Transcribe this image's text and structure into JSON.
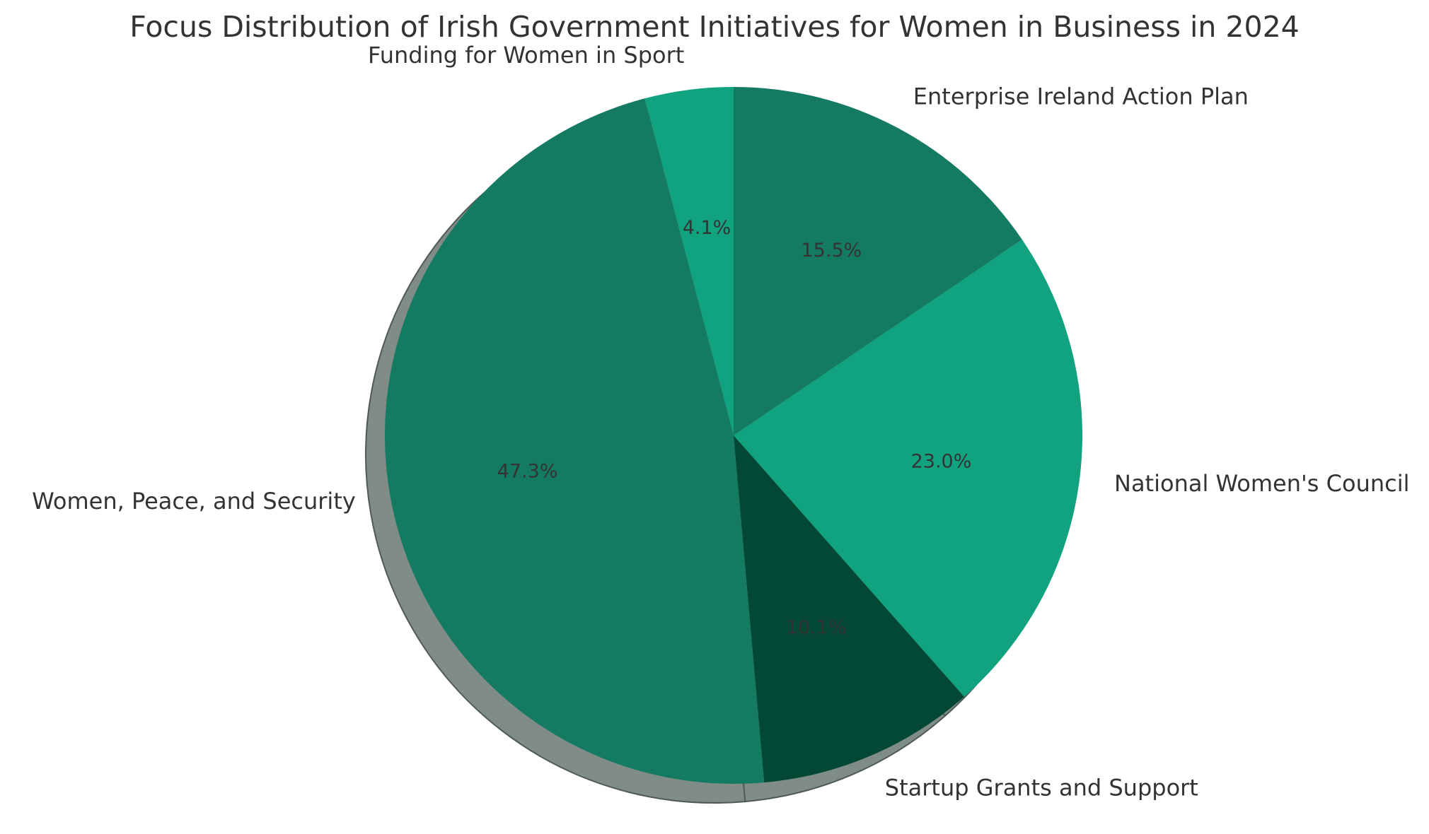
{
  "chart_data": {
    "type": "pie",
    "title": "Focus Distribution of Irish Government Initiatives for Women in Business in 2024",
    "start_angle": "90 degrees (12 o'clock), counter-clockwise",
    "shadow": true,
    "slices": [
      {
        "label": "Funding for Women in Sport",
        "value": 4.1,
        "value_label": "4.1%",
        "color": "#11a37f"
      },
      {
        "label": "Women, Peace, and Security",
        "value": 47.3,
        "value_label": "47.3%",
        "color": "#157a62"
      },
      {
        "label": "Startup Grants and Support",
        "value": 10.1,
        "value_label": "10.1%",
        "color": "#024835"
      },
      {
        "label": "National Women's Council",
        "value": 23.0,
        "value_label": "23.0%",
        "color": "#11a37f"
      },
      {
        "label": "Enterprise Ireland Action Plan",
        "value": 15.5,
        "value_label": "15.5%",
        "color": "#157a62"
      }
    ]
  }
}
